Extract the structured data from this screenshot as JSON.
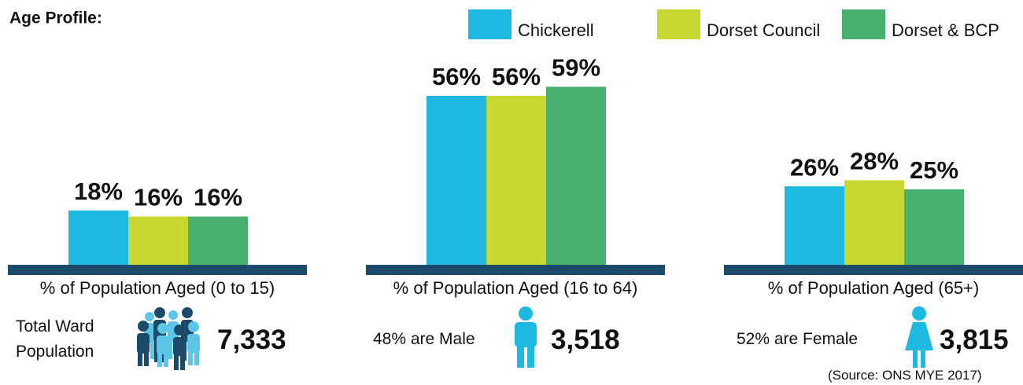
{
  "chart_data": {
    "type": "bar",
    "title": "Age Profile:",
    "categories": [
      "% of Population Aged (0 to 15)",
      "% of Population Aged (16 to 64)",
      "% of Population Aged (65+)"
    ],
    "series": [
      {
        "name": "Chickerell",
        "color": "#1eb9e0",
        "values": [
          18,
          56,
          26
        ],
        "value_labels": [
          "18%",
          "56%",
          "26%"
        ]
      },
      {
        "name": "Dorset Council",
        "color": "#c8d630",
        "values": [
          16,
          56,
          28
        ],
        "value_labels": [
          "16%",
          "56%",
          "28%"
        ]
      },
      {
        "name": "Dorset & BCP",
        "color": "#47b06f",
        "values": [
          16,
          59,
          25
        ],
        "value_labels": [
          "16%",
          "59%",
          "25%"
        ]
      }
    ]
  },
  "summary": {
    "total_label": "Total Ward Population",
    "total_value": "7,333",
    "male_label": "48% are Male",
    "male_value": "3,518",
    "female_label": "52% are Female",
    "female_value": "3,815",
    "source": "(Source: ONS MYE 2017)"
  }
}
